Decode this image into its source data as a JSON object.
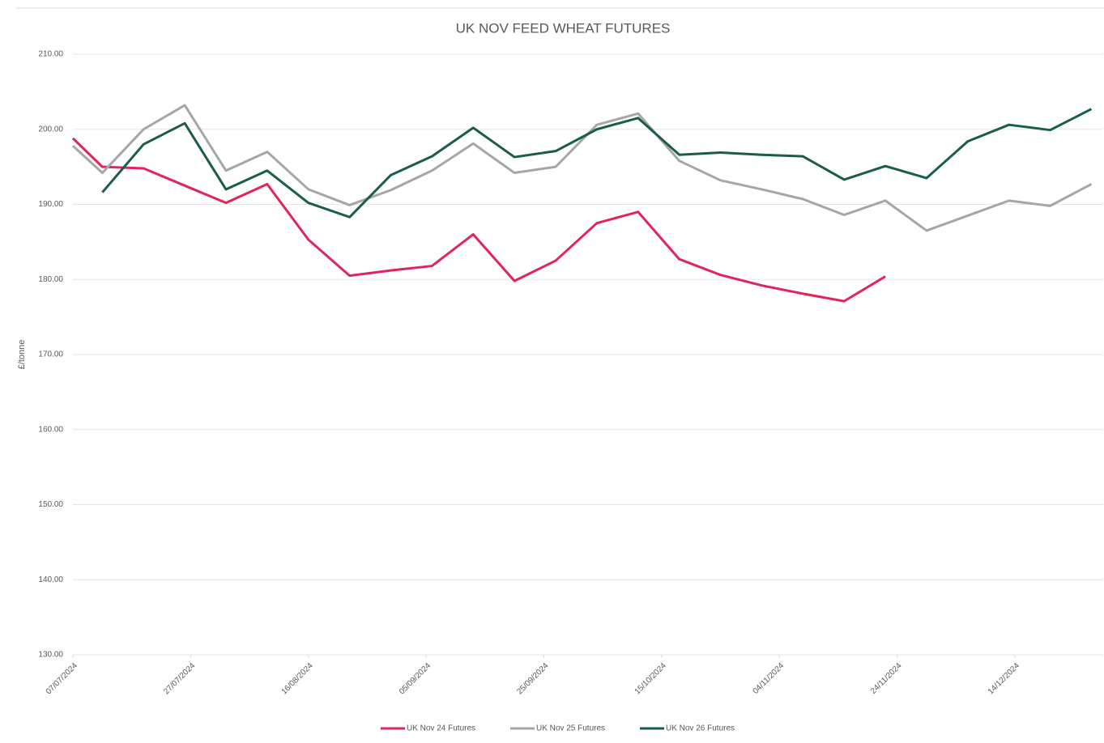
{
  "chart_data": {
    "type": "line",
    "title": "UK NOV FEED WHEAT FUTURES",
    "y_label": "£/tonne",
    "x": [
      "07/07/2024",
      "12/07/2024",
      "19/07/2024",
      "26/07/2024",
      "02/08/2024",
      "09/08/2024",
      "16/08/2024",
      "23/08/2024",
      "30/08/2024",
      "06/09/2024",
      "13/09/2024",
      "20/09/2024",
      "27/09/2024",
      "04/10/2024",
      "11/10/2024",
      "18/10/2024",
      "25/10/2024",
      "01/11/2024",
      "08/11/2024",
      "15/11/2024",
      "22/11/2024",
      "29/11/2024",
      "06/12/2024",
      "13/12/2024",
      "20/12/2024",
      "27/12/2024"
    ],
    "series": [
      {
        "name": "UK Nov 24 Futures",
        "color": "#e0255a",
        "values": [
          198.8,
          195.0,
          194.8,
          192.5,
          190.2,
          192.7,
          185.3,
          180.5,
          181.2,
          181.8,
          186.0,
          179.8,
          182.5,
          187.5,
          189.0,
          182.7,
          180.6,
          179.2,
          178.1,
          177.1,
          180.4,
          null,
          null,
          null,
          null,
          null
        ]
      },
      {
        "name": "UK Nov 25 Futures",
        "color": "#a6a6a6",
        "values": [
          197.8,
          194.2,
          200.0,
          203.2,
          194.5,
          197.0,
          192.0,
          189.9,
          191.9,
          194.5,
          198.1,
          194.2,
          195.0,
          200.6,
          202.1,
          195.8,
          193.2,
          192.0,
          190.7,
          188.6,
          190.5,
          186.5,
          188.5,
          190.5,
          189.8,
          192.7
        ]
      },
      {
        "name": "UK Nov 26 Futures",
        "color": "#1a5e45",
        "values": [
          null,
          191.6,
          198.0,
          200.8,
          192.0,
          194.5,
          190.2,
          188.3,
          193.9,
          196.4,
          200.2,
          196.3,
          197.1,
          200.0,
          201.5,
          196.6,
          196.9,
          196.6,
          196.4,
          193.3,
          195.1,
          193.5,
          198.4,
          200.6,
          199.9,
          202.7
        ]
      }
    ],
    "xlim": [
      "07/07/2024",
      "29/12/2024"
    ],
    "xticks": [
      "07/07/2024",
      "27/07/2024",
      "16/08/2024",
      "05/09/2024",
      "25/09/2024",
      "15/10/2024",
      "04/11/2024",
      "24/11/2024",
      "14/12/2024"
    ],
    "ylim": [
      130,
      210
    ],
    "yticks": [
      {
        "value": 130,
        "label": "130.00"
      },
      {
        "value": 140,
        "label": "140.00"
      },
      {
        "value": 150,
        "label": "150.00"
      },
      {
        "value": 160,
        "label": "160.00"
      },
      {
        "value": 170,
        "label": "170.00"
      },
      {
        "value": 180,
        "label": "180.00"
      },
      {
        "value": 190,
        "label": "190.00"
      },
      {
        "value": 200,
        "label": "200.00"
      },
      {
        "value": 210,
        "label": "210.00"
      }
    ],
    "grid": true,
    "legend": "bottom"
  }
}
